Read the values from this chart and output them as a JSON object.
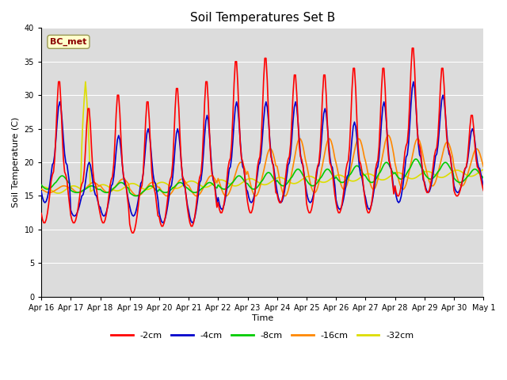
{
  "title": "Soil Temperatures Set B",
  "xlabel": "Time",
  "ylabel": "Soil Temperature (C)",
  "ylim": [
    0,
    40
  ],
  "yticks": [
    0,
    5,
    10,
    15,
    20,
    25,
    30,
    35,
    40
  ],
  "xtick_labels": [
    "Apr 16",
    "Apr 17",
    "Apr 18",
    "Apr 19",
    "Apr 20",
    "Apr 21",
    "Apr 22",
    "Apr 23",
    "Apr 24",
    "Apr 25",
    "Apr 26",
    "Apr 27",
    "Apr 28",
    "Apr 29",
    "Apr 30",
    "May 1"
  ],
  "annotation": "BC_met",
  "bg_color": "#dcdcdc",
  "fig_color": "#ffffff",
  "line_colors": [
    "#ff0000",
    "#0000cc",
    "#00cc00",
    "#ff8800",
    "#dddd00"
  ],
  "line_labels": [
    "-2cm",
    "-4cm",
    "-8cm",
    "-16cm",
    "-32cm"
  ],
  "line_width": 1.2,
  "legend_ncol": 5
}
